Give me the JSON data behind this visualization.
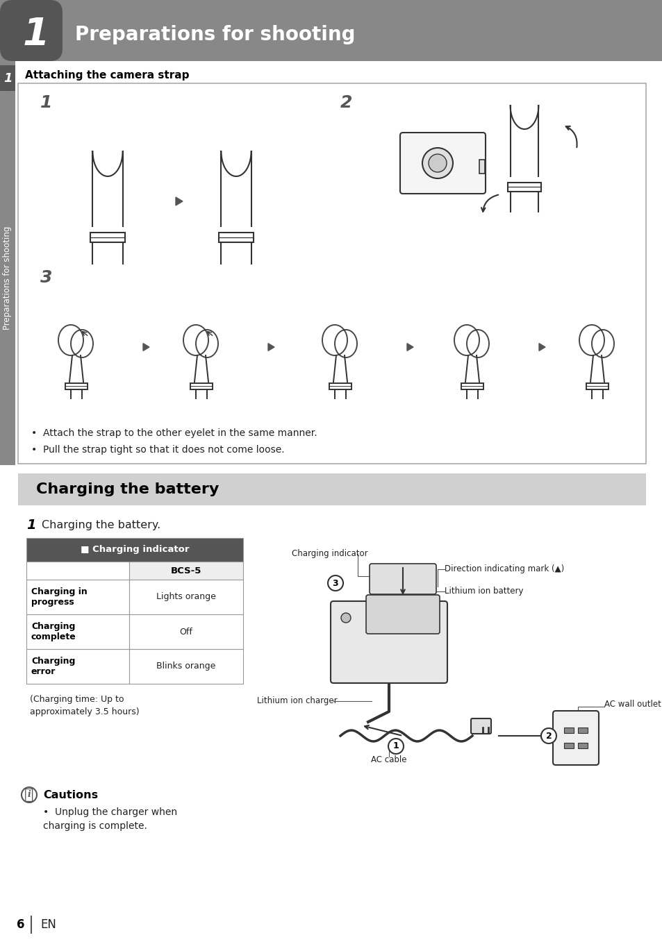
{
  "page_bg": "#ffffff",
  "header_bg": "#888888",
  "header_dark_bg": "#555555",
  "header_number": "1",
  "header_title": "Preparations for shooting",
  "header_title_color": "#ffffff",
  "sidebar_bg": "#888888",
  "sidebar_text": "Preparations for shooting",
  "sidebar_text_color": "#ffffff",
  "sidebar_num": "1",
  "section1_title": "Attaching the camera strap",
  "strap_box_border": "#aaaaaa",
  "strap_step1_label": "1",
  "strap_step2_label": "2",
  "strap_step3_label": "3",
  "strap_bullet1": "Attach the strap to the other eyelet in the same manner.",
  "strap_bullet2": "Pull the strap tight so that it does not come loose.",
  "charging_header_bg": "#d0d0d0",
  "charging_title": "Charging the battery",
  "charging_step_label": "1",
  "charging_step_text": "Charging the battery.",
  "table_header_bg": "#555555",
  "table_header_text": "■ Charging indicator",
  "table_header_text_color": "#ffffff",
  "table_col_header": "BCS-5",
  "table_col_header_bg": "#eeeeee",
  "table_rows": [
    [
      "Charging in\nprogress",
      "Lights orange"
    ],
    [
      "Charging\ncomplete",
      "Off"
    ],
    [
      "Charging\nerror",
      "Blinks orange"
    ]
  ],
  "table_note": "(Charging time: Up to\napproximately 3.5 hours)",
  "diagram_labels": {
    "charging_indicator": "Charging indicator",
    "direction_mark": "Direction indicating mark (▲)",
    "lithium_battery": "Lithium ion battery",
    "circle3": "3",
    "circle1": "1",
    "circle2": "2",
    "li_charger": "Lithium ion charger",
    "ac_cable": "AC cable",
    "ac_outlet": "AC wall outlet"
  },
  "caution_icon_color": "#555555",
  "caution_title": "Cautions",
  "caution_bullet": "Unplug the charger when\ncharging is complete.",
  "footer_page": "6",
  "footer_lang": "EN",
  "table_border": "#999999",
  "body_text_color": "#222222",
  "bold_text_color": "#000000",
  "arrow_color": "#555555",
  "line_color": "#555555",
  "illus_color": "#333333"
}
